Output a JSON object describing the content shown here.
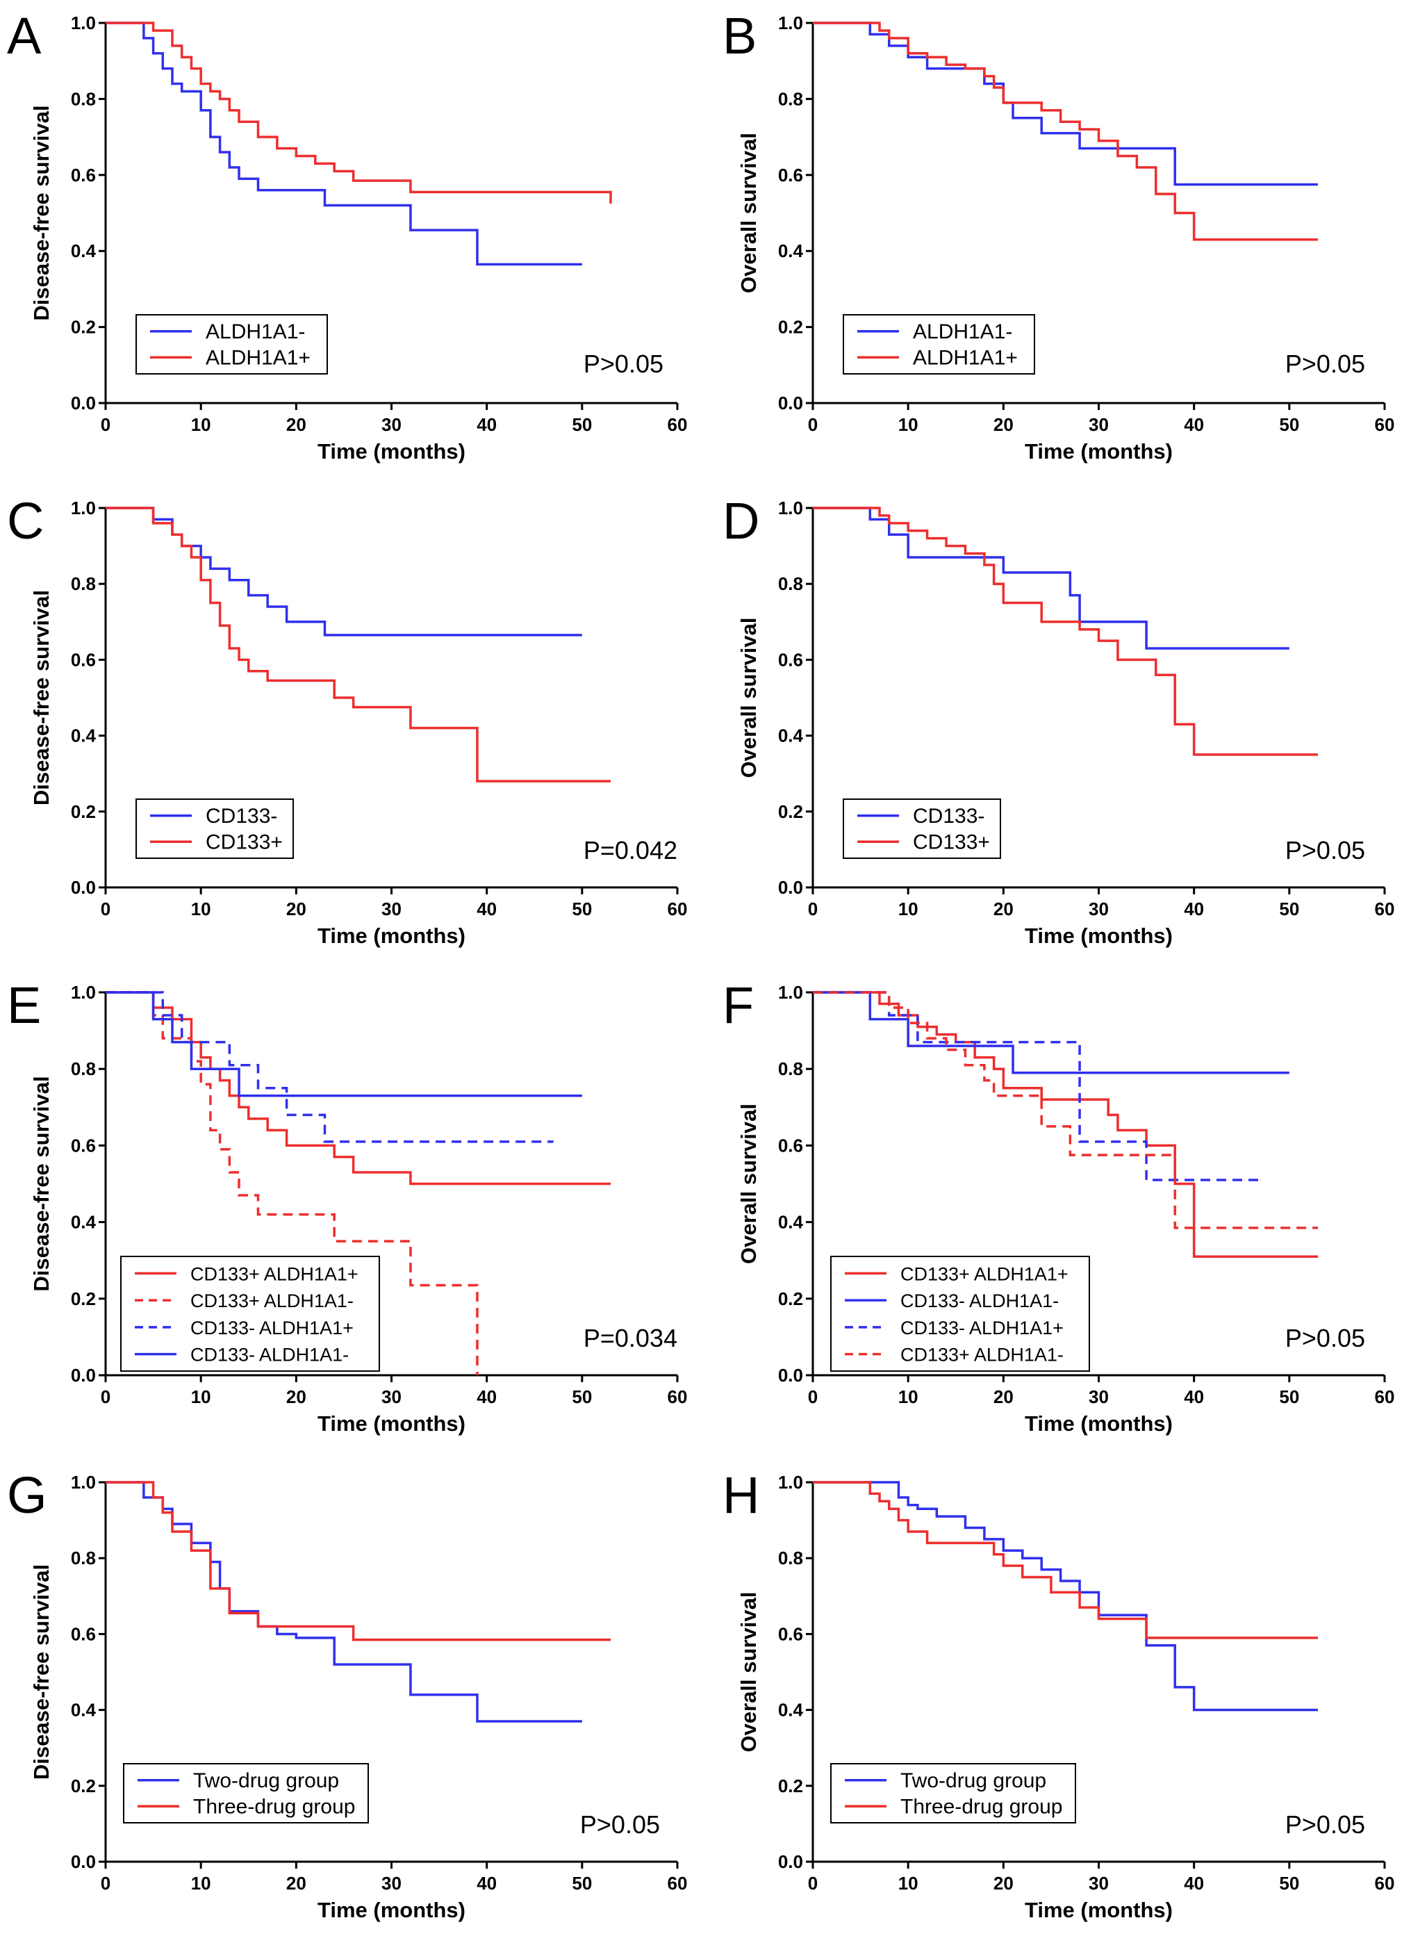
{
  "colors": {
    "blue": "#3030ee",
    "red": "#ee2e2e",
    "axis": "#000000"
  },
  "chart_data": [
    {
      "panel": "A",
      "type": "line",
      "title": "",
      "xlabel": "Time (months)",
      "ylabel": "Disease-free survival",
      "xlim": [
        0,
        60
      ],
      "ylim": [
        0,
        1.0
      ],
      "xticks": [
        "0",
        "10",
        "20",
        "30",
        "40",
        "50",
        "60"
      ],
      "yticks": [
        "0.0",
        "0.2",
        "0.4",
        "0.6",
        "0.8",
        "1.0"
      ],
      "p_value": "P>0.05",
      "legend_position": "bottom-left",
      "series": [
        {
          "name": "ALDH1A1-",
          "color": "blue",
          "dashed": false,
          "x": [
            0,
            4,
            5,
            6,
            7,
            8,
            10,
            11,
            12,
            13,
            14,
            16,
            23,
            32,
            39,
            50
          ],
          "y": [
            1.0,
            0.96,
            0.92,
            0.88,
            0.84,
            0.82,
            0.77,
            0.7,
            0.66,
            0.62,
            0.59,
            0.56,
            0.52,
            0.455,
            0.365,
            0.365
          ]
        },
        {
          "name": "ALDH1A1+",
          "color": "red",
          "dashed": false,
          "x": [
            0,
            5,
            7,
            8,
            9,
            10,
            11,
            12,
            13,
            14,
            16,
            18,
            20,
            22,
            24,
            26,
            32,
            53
          ],
          "y": [
            1.0,
            0.98,
            0.94,
            0.91,
            0.88,
            0.84,
            0.82,
            0.8,
            0.77,
            0.74,
            0.7,
            0.67,
            0.65,
            0.63,
            0.61,
            0.585,
            0.555,
            0.525
          ]
        }
      ]
    },
    {
      "panel": "B",
      "type": "line",
      "title": "",
      "xlabel": "Time (months)",
      "ylabel": "Overall survival",
      "xlim": [
        0,
        60
      ],
      "ylim": [
        0,
        1.0
      ],
      "xticks": [
        "0",
        "10",
        "20",
        "30",
        "40",
        "50",
        "60"
      ],
      "yticks": [
        "0.0",
        "0.2",
        "0.4",
        "0.6",
        "0.8",
        "1.0"
      ],
      "p_value": "P>0.05",
      "legend_position": "bottom-left",
      "series": [
        {
          "name": "ALDH1A1-",
          "color": "blue",
          "dashed": false,
          "x": [
            0,
            6,
            8,
            10,
            12,
            18,
            20,
            21,
            24,
            28,
            38,
            53
          ],
          "y": [
            1.0,
            0.97,
            0.94,
            0.91,
            0.88,
            0.84,
            0.79,
            0.75,
            0.71,
            0.67,
            0.575,
            0.575
          ]
        },
        {
          "name": "ALDH1A1+",
          "color": "red",
          "dashed": false,
          "x": [
            0,
            7,
            8,
            10,
            12,
            14,
            16,
            18,
            19,
            20,
            24,
            26,
            28,
            30,
            32,
            34,
            36,
            38,
            40,
            53
          ],
          "y": [
            1.0,
            0.98,
            0.96,
            0.92,
            0.91,
            0.89,
            0.88,
            0.86,
            0.83,
            0.79,
            0.77,
            0.74,
            0.72,
            0.69,
            0.65,
            0.62,
            0.55,
            0.5,
            0.43,
            0.43
          ]
        }
      ]
    },
    {
      "panel": "C",
      "type": "line",
      "title": "",
      "xlabel": "Time (months)",
      "ylabel": "Disease-free survival",
      "xlim": [
        0,
        60
      ],
      "ylim": [
        0,
        1.0
      ],
      "xticks": [
        "0",
        "10",
        "20",
        "30",
        "40",
        "50",
        "60"
      ],
      "yticks": [
        "0.0",
        "0.2",
        "0.4",
        "0.6",
        "0.8",
        "1.0"
      ],
      "p_value": "P=0.042",
      "legend_position": "bottom-left",
      "series": [
        {
          "name": "CD133-",
          "color": "blue",
          "dashed": false,
          "x": [
            0,
            5,
            7,
            8,
            10,
            11,
            13,
            15,
            17,
            19,
            23,
            50
          ],
          "y": [
            1.0,
            0.97,
            0.93,
            0.9,
            0.87,
            0.84,
            0.81,
            0.77,
            0.74,
            0.7,
            0.665,
            0.665
          ]
        },
        {
          "name": "CD133+",
          "color": "red",
          "dashed": false,
          "x": [
            0,
            5,
            7,
            8,
            9,
            10,
            11,
            12,
            13,
            14,
            15,
            17,
            24,
            26,
            32,
            39,
            53
          ],
          "y": [
            1.0,
            0.96,
            0.93,
            0.9,
            0.87,
            0.81,
            0.75,
            0.69,
            0.63,
            0.6,
            0.57,
            0.545,
            0.5,
            0.475,
            0.42,
            0.28,
            0.28
          ]
        }
      ]
    },
    {
      "panel": "D",
      "type": "line",
      "title": "",
      "xlabel": "Time (months)",
      "ylabel": "Overall survival",
      "xlim": [
        0,
        60
      ],
      "ylim": [
        0,
        1.0
      ],
      "xticks": [
        "0",
        "10",
        "20",
        "30",
        "40",
        "50",
        "60"
      ],
      "yticks": [
        "0.0",
        "0.2",
        "0.4",
        "0.6",
        "0.8",
        "1.0"
      ],
      "p_value": "P>0.05",
      "legend_position": "bottom-left",
      "series": [
        {
          "name": "CD133-",
          "color": "blue",
          "dashed": false,
          "x": [
            0,
            6,
            8,
            10,
            20,
            21,
            27,
            28,
            35,
            50
          ],
          "y": [
            1.0,
            0.97,
            0.93,
            0.87,
            0.83,
            0.83,
            0.77,
            0.7,
            0.63,
            0.63
          ]
        },
        {
          "name": "CD133+",
          "color": "red",
          "dashed": false,
          "x": [
            0,
            7,
            8,
            10,
            12,
            14,
            16,
            18,
            19,
            20,
            24,
            26,
            28,
            30,
            32,
            34,
            36,
            38,
            40,
            53
          ],
          "y": [
            1.0,
            0.98,
            0.96,
            0.94,
            0.92,
            0.9,
            0.88,
            0.85,
            0.8,
            0.75,
            0.7,
            0.7,
            0.68,
            0.65,
            0.6,
            0.6,
            0.56,
            0.43,
            0.35,
            0.35
          ]
        }
      ]
    },
    {
      "panel": "E",
      "type": "line",
      "title": "",
      "xlabel": "Time (months)",
      "ylabel": "Disease-free survival",
      "xlim": [
        0,
        60
      ],
      "ylim": [
        0,
        1.0
      ],
      "xticks": [
        "0",
        "10",
        "20",
        "30",
        "40",
        "50",
        "60"
      ],
      "yticks": [
        "0.0",
        "0.2",
        "0.4",
        "0.6",
        "0.8",
        "1.0"
      ],
      "p_value": "P=0.034",
      "legend_position": "bottom-left",
      "series": [
        {
          "name": "CD133+ ALDH1A1+",
          "color": "red",
          "dashed": false,
          "x": [
            0,
            5,
            7,
            9,
            10,
            11,
            12,
            13,
            14,
            15,
            17,
            19,
            24,
            26,
            32,
            53
          ],
          "y": [
            1.0,
            0.96,
            0.93,
            0.87,
            0.83,
            0.8,
            0.77,
            0.73,
            0.7,
            0.67,
            0.64,
            0.6,
            0.57,
            0.53,
            0.5,
            0.5
          ]
        },
        {
          "name": "CD133+ ALDH1A1-",
          "color": "red",
          "dashed": true,
          "x": [
            0,
            5,
            6,
            9,
            10,
            11,
            12,
            13,
            14,
            16,
            24,
            32,
            39,
            39
          ],
          "y": [
            1.0,
            0.94,
            0.88,
            0.82,
            0.76,
            0.64,
            0.59,
            0.53,
            0.47,
            0.42,
            0.35,
            0.235,
            0.235,
            0.0
          ]
        },
        {
          "name": "CD133-  ALDH1A1+",
          "color": "blue",
          "dashed": true,
          "x": [
            0,
            6,
            8,
            10,
            13,
            16,
            19,
            23,
            47
          ],
          "y": [
            1.0,
            0.94,
            0.87,
            0.87,
            0.81,
            0.75,
            0.68,
            0.61,
            0.61
          ]
        },
        {
          "name": "CD133-  ALDH1A1-",
          "color": "blue",
          "dashed": false,
          "x": [
            0,
            5,
            7,
            9,
            11,
            14,
            50
          ],
          "y": [
            1.0,
            0.93,
            0.87,
            0.8,
            0.8,
            0.73,
            0.73
          ]
        }
      ]
    },
    {
      "panel": "F",
      "type": "line",
      "title": "",
      "xlabel": "Time (months)",
      "ylabel": "Overall survival",
      "xlim": [
        0,
        60
      ],
      "ylim": [
        0,
        1.0
      ],
      "xticks": [
        "0",
        "10",
        "20",
        "30",
        "40",
        "50",
        "60"
      ],
      "yticks": [
        "0.0",
        "0.2",
        "0.4",
        "0.6",
        "0.8",
        "1.0"
      ],
      "p_value": "P>0.05",
      "legend_position": "bottom-left",
      "series": [
        {
          "name": "CD133+ ALDH1A1+",
          "color": "red",
          "dashed": false,
          "x": [
            0,
            7,
            9,
            11,
            13,
            15,
            17,
            19,
            20,
            24,
            31,
            32,
            35,
            38,
            40,
            53
          ],
          "y": [
            1.0,
            0.97,
            0.94,
            0.91,
            0.89,
            0.87,
            0.83,
            0.8,
            0.75,
            0.72,
            0.68,
            0.64,
            0.6,
            0.5,
            0.31,
            0.31
          ]
        },
        {
          "name": "CD133- ALDH1A1-",
          "color": "blue",
          "dashed": false,
          "x": [
            0,
            6,
            10,
            19,
            21,
            50
          ],
          "y": [
            1.0,
            0.93,
            0.86,
            0.86,
            0.79,
            0.79
          ]
        },
        {
          "name": "CD133- ALDH1A1+",
          "color": "blue",
          "dashed": true,
          "x": [
            0,
            8,
            11,
            27,
            28,
            35,
            47
          ],
          "y": [
            1.0,
            0.94,
            0.87,
            0.87,
            0.61,
            0.51,
            0.51
          ]
        },
        {
          "name": "CD133+ ALDH1A1-",
          "color": "red",
          "dashed": true,
          "x": [
            0,
            8,
            10,
            12,
            14,
            16,
            18,
            19,
            20,
            24,
            27,
            38,
            53
          ],
          "y": [
            1.0,
            0.96,
            0.92,
            0.88,
            0.85,
            0.81,
            0.77,
            0.73,
            0.73,
            0.65,
            0.575,
            0.385,
            0.385
          ]
        }
      ]
    },
    {
      "panel": "G",
      "type": "line",
      "title": "",
      "xlabel": "Time (months)",
      "ylabel": "Disease-free survival",
      "xlim": [
        0,
        60
      ],
      "ylim": [
        0,
        1.0
      ],
      "xticks": [
        "0",
        "10",
        "20",
        "30",
        "40",
        "50",
        "60"
      ],
      "yticks": [
        "0.0",
        "0.2",
        "0.4",
        "0.6",
        "0.8",
        "1.0"
      ],
      "p_value": "P>0.05",
      "legend_position": "bottom-left",
      "series": [
        {
          "name": "Two-drug group",
          "color": "blue",
          "dashed": false,
          "x": [
            0,
            4,
            6,
            7,
            9,
            11,
            12,
            13,
            16,
            18,
            20,
            24,
            32,
            39,
            50
          ],
          "y": [
            1.0,
            0.96,
            0.93,
            0.89,
            0.84,
            0.79,
            0.72,
            0.66,
            0.62,
            0.6,
            0.59,
            0.52,
            0.44,
            0.37,
            0.37
          ]
        },
        {
          "name": "Three-drug group",
          "color": "red",
          "dashed": false,
          "x": [
            0,
            5,
            6,
            7,
            9,
            11,
            13,
            16,
            26,
            53
          ],
          "y": [
            1.0,
            0.96,
            0.92,
            0.87,
            0.82,
            0.72,
            0.655,
            0.62,
            0.585,
            0.585
          ]
        }
      ]
    },
    {
      "panel": "H",
      "type": "line",
      "title": "",
      "xlabel": "Time (months)",
      "ylabel": "Overall survival",
      "xlim": [
        0,
        60
      ],
      "ylim": [
        0,
        1.0
      ],
      "xticks": [
        "0",
        "10",
        "20",
        "30",
        "40",
        "50",
        "60"
      ],
      "yticks": [
        "0.0",
        "0.2",
        "0.4",
        "0.6",
        "0.8",
        "1.0"
      ],
      "p_value": "P>0.05",
      "legend_position": "bottom-left",
      "series": [
        {
          "name": "Two-drug group",
          "color": "blue",
          "dashed": false,
          "x": [
            0,
            9,
            10,
            11,
            13,
            16,
            18,
            20,
            22,
            24,
            26,
            28,
            30,
            35,
            38,
            40,
            53
          ],
          "y": [
            1.0,
            0.96,
            0.94,
            0.93,
            0.91,
            0.88,
            0.85,
            0.82,
            0.8,
            0.77,
            0.74,
            0.71,
            0.65,
            0.57,
            0.46,
            0.4,
            0.4
          ]
        },
        {
          "name": "Three-drug group",
          "color": "red",
          "dashed": false,
          "x": [
            0,
            6,
            7,
            8,
            9,
            10,
            12,
            19,
            20,
            22,
            25,
            28,
            30,
            35,
            53
          ],
          "y": [
            1.0,
            0.97,
            0.95,
            0.93,
            0.9,
            0.87,
            0.84,
            0.81,
            0.78,
            0.75,
            0.71,
            0.67,
            0.64,
            0.59,
            0.59
          ]
        }
      ]
    }
  ]
}
